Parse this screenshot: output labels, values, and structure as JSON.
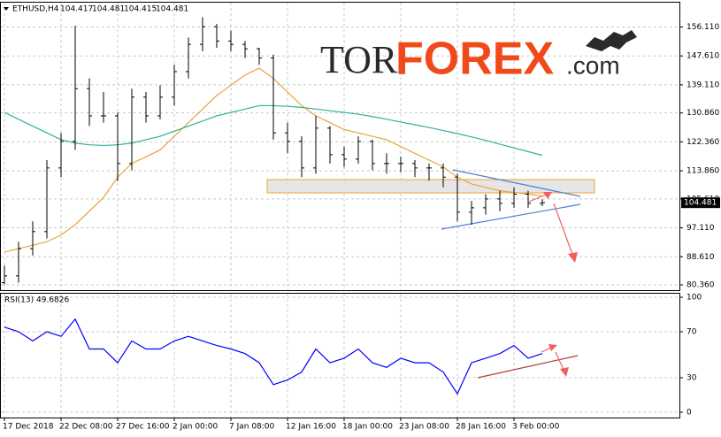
{
  "header": {
    "symbol": "ETHUSD,H4",
    "quote": [
      104.417,
      104.481,
      104.415,
      104.481
    ]
  },
  "logo": {
    "part1": "TOR",
    "part2": "FOREX",
    "part3": ".com"
  },
  "chart_data": [
    {
      "type": "candlestick",
      "current_price": 104.481,
      "categories": [
        "17 Dec 2018",
        null,
        null,
        null,
        "22 Dec 08:00",
        null,
        null,
        null,
        "27 Dec 16:00",
        null,
        null,
        null,
        "2 Jan 00:00",
        null,
        null,
        null,
        "7 Jan 08:00",
        null,
        null,
        null,
        "12 Jan 16:00",
        null,
        null,
        null,
        "18 Jan 00:00",
        null,
        null,
        null,
        "23 Jan 08:00",
        null,
        null,
        null,
        "28 Jan 16:00",
        null,
        null,
        null,
        "3 Feb 00:00",
        null,
        null
      ],
      "open": [
        81,
        83,
        91,
        96,
        114.7,
        122.5,
        138,
        130,
        130,
        116,
        135.5,
        130,
        135.5,
        143,
        151,
        156.2,
        152,
        151,
        149.7,
        147,
        125,
        122.5,
        114.7,
        126.4,
        118.6,
        117.3,
        122.5,
        116,
        116,
        116,
        114.7,
        114.7,
        112,
        101.7,
        103,
        105.6,
        104.3,
        107,
        104.3
      ],
      "high": [
        86,
        93,
        99,
        117,
        125,
        156.5,
        141,
        137,
        131,
        138,
        137,
        139,
        145,
        153,
        159,
        157,
        155,
        152,
        150,
        148,
        128,
        124,
        130,
        127,
        121,
        124,
        123,
        119,
        118,
        117,
        116,
        116,
        113,
        105,
        107,
        108,
        109,
        108,
        105.5
      ],
      "low": [
        80.5,
        81,
        89,
        94,
        112,
        120,
        127,
        128,
        110.8,
        114,
        128,
        129,
        133,
        141,
        149,
        150,
        149,
        147,
        145,
        123,
        119,
        112,
        113,
        116,
        115,
        116,
        114,
        113,
        113.5,
        112,
        111,
        109,
        99,
        98,
        101,
        102,
        103,
        103,
        103.5
      ],
      "close": [
        83,
        91,
        96,
        114.7,
        122.5,
        138,
        130,
        130,
        116,
        135.5,
        130,
        135.5,
        143,
        151,
        156.2,
        152,
        151,
        149.7,
        147,
        125,
        122.5,
        114.7,
        126.4,
        118.6,
        117.3,
        122.5,
        116,
        116,
        116,
        114.7,
        114.7,
        112,
        101.7,
        103,
        105.6,
        104.3,
        107,
        104.3,
        104.5
      ],
      "color": "#000000",
      "series": [
        {
          "color": "#e8a53a",
          "values": [
            90,
            91,
            92,
            93,
            95,
            98,
            102,
            106,
            112,
            116,
            118,
            120,
            124,
            128,
            132,
            136,
            139,
            142,
            144,
            141,
            137,
            133,
            130,
            128,
            126,
            125,
            124,
            123,
            121,
            119,
            117,
            115,
            112,
            110,
            109,
            108,
            107.5,
            107,
            106.5
          ]
        },
        {
          "color": "#2fb0a0",
          "values": [
            131,
            129,
            127,
            125,
            123,
            122,
            121.5,
            121.3,
            121.5,
            122,
            123,
            124,
            125.5,
            127,
            128.5,
            130,
            131,
            132,
            133,
            133,
            132.8,
            132.5,
            132,
            131.5,
            131,
            130.5,
            129.8,
            129,
            128.2,
            127.4,
            126.6,
            125.7,
            124.8,
            123.8,
            122.8,
            121.7,
            120.6,
            119.5,
            118.4
          ]
        }
      ],
      "ylim": [
        78.8,
        163
      ],
      "yticks": [
        {
          "value": 156.11,
          "label": "156.110"
        },
        {
          "value": 147.61,
          "label": "147.610"
        },
        {
          "value": 139.11,
          "label": "139.110"
        },
        {
          "value": 130.86,
          "label": "130.860"
        },
        {
          "value": 122.36,
          "label": "122.360"
        },
        {
          "value": 113.86,
          "label": "113.860"
        },
        {
          "value": 105.61,
          "label": "105.610"
        },
        {
          "value": 97.11,
          "label": "97.110"
        },
        {
          "value": 88.61,
          "label": "88.610"
        },
        {
          "value": 80.36,
          "label": "80.360"
        }
      ],
      "grid": true
    },
    {
      "type": "line",
      "title": "RSI(13)",
      "current_value": 49.6826,
      "series": [
        {
          "color": "#0000ff",
          "values": [
            74,
            70,
            62,
            70,
            66,
            81,
            55,
            55,
            43,
            62,
            55,
            55,
            62,
            66,
            62,
            58,
            55,
            51,
            43,
            24,
            28,
            35,
            55,
            43,
            47,
            55,
            43,
            39,
            47,
            43,
            43,
            35,
            16,
            43,
            47,
            51,
            58,
            47,
            51
          ]
        }
      ],
      "ylim": [
        0,
        100
      ],
      "yticks": [
        100,
        70,
        30,
        0
      ],
      "grid": true
    }
  ]
}
